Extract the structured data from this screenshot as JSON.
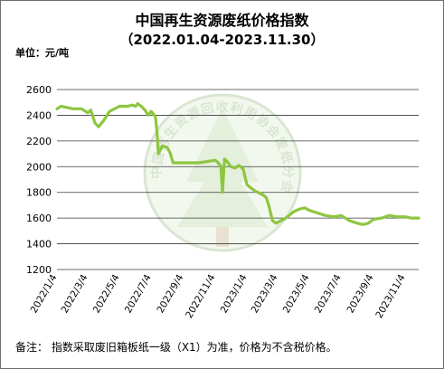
{
  "title": "中国再生资源废纸价格指数",
  "subtitle": "（2022.01.04-2023.11.30）",
  "unit_label": "单位：元/吨",
  "footnote": "备注：  指数采取废旧箱板纸一级（X1）为准，价格为不含税价格。",
  "watermark": "中国再生资源回收利用协会废纸分会",
  "colors": {
    "line": "#8dc63f",
    "grid": "#3a3a3a",
    "axis": "#333333",
    "watermark": "#d9e6d2"
  },
  "chart_data": {
    "type": "line",
    "title": "中国再生资源废纸价格指数",
    "subtitle": "（2022.01.04-2023.11.30）",
    "ylabel": "单位：元/吨",
    "ylim": [
      1200,
      2600
    ],
    "yticks": [
      1200,
      1400,
      1600,
      1800,
      2000,
      2200,
      2400,
      2600
    ],
    "xlim": [
      "2022-01-04",
      "2023-11-30"
    ],
    "xticks": [
      "2022/1/4",
      "2022/3/4",
      "2022/5/4",
      "2022/7/4",
      "2022/9/4",
      "2022/11/4",
      "2023/1/4",
      "2023/3/4",
      "2023/5/4",
      "2023/7/4",
      "2023/9/4",
      "2023/11/4"
    ],
    "grid": true,
    "legend": "none",
    "series": [
      {
        "x": [
          "2022-01-04",
          "2022-01-12",
          "2022-02-04",
          "2022-02-20",
          "2022-03-04",
          "2022-03-10",
          "2022-03-18",
          "2022-03-25",
          "2022-04-04",
          "2022-04-15",
          "2022-05-04",
          "2022-05-20",
          "2022-05-28",
          "2022-06-04",
          "2022-06-08",
          "2022-06-15",
          "2022-06-22",
          "2022-06-28",
          "2022-07-04",
          "2022-07-12",
          "2022-07-15",
          "2022-07-18",
          "2022-07-25",
          "2022-08-04",
          "2022-08-10",
          "2022-08-15",
          "2022-09-01",
          "2022-09-10",
          "2022-09-20",
          "2022-10-04",
          "2022-10-20",
          "2022-11-04",
          "2022-11-10",
          "2022-11-15",
          "2022-11-18",
          "2022-11-22",
          "2022-11-27",
          "2022-12-04",
          "2022-12-12",
          "2022-12-20",
          "2022-12-28",
          "2023-01-04",
          "2023-01-10",
          "2023-01-20",
          "2023-02-04",
          "2023-02-10",
          "2023-02-15",
          "2023-02-22",
          "2023-03-01",
          "2023-03-10",
          "2023-03-20",
          "2023-04-04",
          "2023-04-15",
          "2023-04-25",
          "2023-05-04",
          "2023-05-20",
          "2023-06-04",
          "2023-06-20",
          "2023-07-04",
          "2023-07-20",
          "2023-08-04",
          "2023-08-15",
          "2023-08-25",
          "2023-09-04",
          "2023-09-20",
          "2023-10-04",
          "2023-10-20",
          "2023-11-04",
          "2023-11-15",
          "2023-11-30"
        ],
        "values": [
          2450,
          2470,
          2450,
          2450,
          2420,
          2440,
          2340,
          2310,
          2360,
          2430,
          2470,
          2470,
          2480,
          2470,
          2490,
          2470,
          2440,
          2400,
          2430,
          2390,
          2280,
          2100,
          2160,
          2150,
          2100,
          2030,
          2030,
          2030,
          2030,
          2030,
          2040,
          2050,
          2030,
          2000,
          1800,
          2060,
          2040,
          2000,
          1990,
          2010,
          1980,
          1860,
          1840,
          1810,
          1780,
          1760,
          1700,
          1580,
          1560,
          1580,
          1600,
          1650,
          1670,
          1680,
          1660,
          1640,
          1620,
          1610,
          1620,
          1580,
          1560,
          1550,
          1560,
          1590,
          1600,
          1620,
          1610,
          1610,
          1600,
          1600
        ]
      }
    ]
  }
}
